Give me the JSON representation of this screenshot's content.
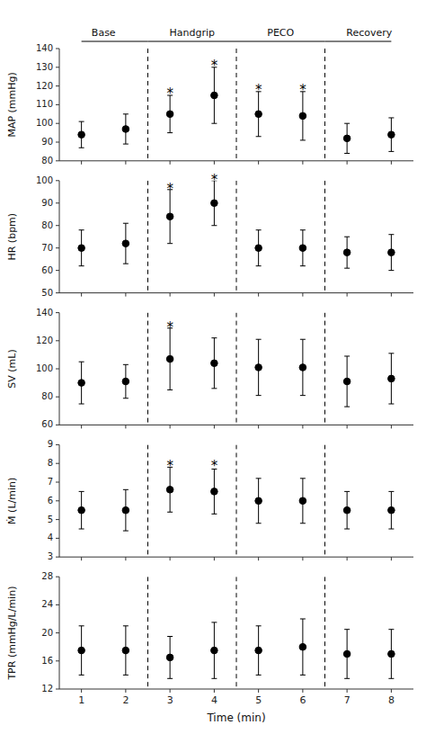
{
  "chart_data": [
    {
      "type": "scatter",
      "x": [
        1,
        2,
        3,
        4,
        5,
        6,
        7,
        8
      ],
      "values": [
        94,
        97,
        105,
        115,
        105,
        104,
        92,
        94
      ],
      "errors": [
        7,
        8,
        10,
        15,
        12,
        13,
        8,
        9
      ],
      "color": "black",
      "marker": "circle",
      "ylabel": "MAP (mmHg)",
      "xlim": [
        0.5,
        8.5
      ],
      "xticks": [
        1,
        2,
        3,
        4,
        5,
        6,
        7,
        8
      ],
      "ylim": [
        80,
        140
      ],
      "yticks": [
        80,
        90,
        100,
        110,
        120,
        130,
        140
      ],
      "tick_labels": "y",
      "vlines": [
        2.5,
        4.5,
        6.5
      ],
      "annotations": [
        {
          "x": 3,
          "y": 118,
          "text": "*"
        },
        {
          "x": 4,
          "y": 133,
          "text": "*"
        },
        {
          "x": 5,
          "y": 120,
          "text": "*"
        },
        {
          "x": 6,
          "y": 120,
          "text": "*"
        }
      ],
      "phases": [
        {
          "label": "Base",
          "center": 1.5,
          "span": [
            1,
            2.5
          ]
        },
        {
          "label": "Handgrip",
          "center": 3.5,
          "span": [
            2.5,
            4.5
          ]
        },
        {
          "label": "PECO",
          "center": 5.5,
          "span": [
            4.5,
            6.5
          ]
        },
        {
          "label": "Recovery",
          "center": 7.5,
          "span": [
            6.5,
            8
          ]
        }
      ]
    },
    {
      "type": "scatter",
      "x": [
        1,
        2,
        3,
        4,
        5,
        6,
        7,
        8
      ],
      "values": [
        70,
        72,
        84,
        90,
        70,
        70,
        68,
        68
      ],
      "errors": [
        8,
        9,
        12,
        10,
        8,
        8,
        7,
        8
      ],
      "color": "black",
      "marker": "circle",
      "ylabel": "HR (bpm)",
      "xlim": [
        0.5,
        8.5
      ],
      "xticks": [
        1,
        2,
        3,
        4,
        5,
        6,
        7,
        8
      ],
      "ylim": [
        50,
        100
      ],
      "yticks": [
        50,
        60,
        70,
        80,
        90,
        100
      ],
      "tick_labels": "y",
      "vlines": [
        2.5,
        4.5,
        6.5
      ],
      "annotations": [
        {
          "x": 3,
          "y": 98,
          "text": "*"
        },
        {
          "x": 4,
          "y": 102,
          "text": "*"
        }
      ]
    },
    {
      "type": "scatter",
      "x": [
        1,
        2,
        3,
        4,
        5,
        6,
        7,
        8
      ],
      "values": [
        90,
        91,
        107,
        104,
        101,
        101,
        91,
        93
      ],
      "errors": [
        15,
        12,
        22,
        18,
        20,
        20,
        18,
        18
      ],
      "color": "black",
      "marker": "circle",
      "ylabel": "SV (mL)",
      "xlim": [
        0.5,
        8.5
      ],
      "xticks": [
        1,
        2,
        3,
        4,
        5,
        6,
        7,
        8
      ],
      "ylim": [
        60,
        140
      ],
      "yticks": [
        60,
        80,
        100,
        120,
        140
      ],
      "tick_labels": "y",
      "vlines": [
        2.5,
        4.5,
        6.5
      ],
      "annotations": [
        {
          "x": 3,
          "y": 132,
          "text": "*"
        }
      ]
    },
    {
      "type": "scatter",
      "x": [
        1,
        2,
        3,
        4,
        5,
        6,
        7,
        8
      ],
      "values": [
        5.5,
        5.5,
        6.6,
        6.5,
        6.0,
        6.0,
        5.5,
        5.5
      ],
      "errors": [
        1.0,
        1.1,
        1.2,
        1.2,
        1.2,
        1.2,
        1.0,
        1.0
      ],
      "color": "black",
      "marker": "circle",
      "ylabel": "Ṁ (L/min)",
      "xlim": [
        0.5,
        8.5
      ],
      "xticks": [
        1,
        2,
        3,
        4,
        5,
        6,
        7,
        8
      ],
      "ylim": [
        3,
        9
      ],
      "yticks": [
        3,
        4,
        5,
        6,
        7,
        8,
        9
      ],
      "tick_labels": "y",
      "vlines": [
        2.5,
        4.5,
        6.5
      ],
      "annotations": [
        {
          "x": 3,
          "y": 8.05,
          "text": "*"
        },
        {
          "x": 4,
          "y": 8.05,
          "text": "*"
        }
      ]
    },
    {
      "type": "scatter",
      "x": [
        1,
        2,
        3,
        4,
        5,
        6,
        7,
        8
      ],
      "values": [
        17.5,
        17.5,
        16.5,
        17.5,
        17.5,
        18.0,
        17.0,
        17.0
      ],
      "errors": [
        3.5,
        3.5,
        3.0,
        4.0,
        3.5,
        4.0,
        3.5,
        3.5
      ],
      "color": "black",
      "marker": "circle",
      "ylabel": "TPR (mmHg/L/min)",
      "xlabel": "Time (min)",
      "xlim": [
        0.5,
        8.5
      ],
      "xticks": [
        1,
        2,
        3,
        4,
        5,
        6,
        7,
        8
      ],
      "ylim": [
        12,
        28
      ],
      "yticks": [
        12,
        16,
        20,
        24,
        28
      ],
      "vlines": [
        2.5,
        4.5,
        6.5
      ],
      "annotations": []
    }
  ]
}
